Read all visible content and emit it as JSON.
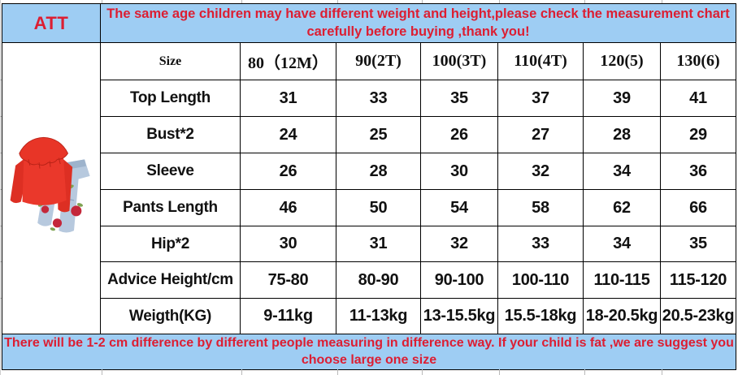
{
  "brand": "ATT",
  "top_banner": "The same age children may have different weight and height,please check the measurement chart carefully before buying ,thank you!",
  "bottom_banner": "There will be 1-2 cm difference by different people measuring in difference way. If your child is fat ,we are suggest you choose large one size",
  "table": {
    "header": [
      "Size",
      "80（12M）",
      "90(2T)",
      "100(3T)",
      "110(4T)",
      "120(5)",
      "130(6)"
    ],
    "rows": [
      {
        "label": "Top Length",
        "values": [
          "31",
          "33",
          "35",
          "37",
          "39",
          "41"
        ]
      },
      {
        "label": "Bust*2",
        "values": [
          "24",
          "25",
          "26",
          "27",
          "28",
          "29"
        ]
      },
      {
        "label": "Sleeve",
        "values": [
          "26",
          "28",
          "30",
          "32",
          "34",
          "36"
        ]
      },
      {
        "label": "Pants Length",
        "values": [
          "46",
          "50",
          "54",
          "58",
          "62",
          "66"
        ]
      },
      {
        "label": "Hip*2",
        "values": [
          "30",
          "31",
          "32",
          "33",
          "34",
          "35"
        ]
      },
      {
        "label": "Advice Height/cm",
        "values": [
          "75-80",
          "80-90",
          "90-100",
          "100-110",
          "110-115",
          "115-120"
        ]
      },
      {
        "label": "Weigth(KG)",
        "values": [
          "9-11kg",
          "11-13kg",
          "13-15.5kg",
          "15.5-18kg",
          "18-20.5kg",
          "20.5-23kg"
        ]
      }
    ]
  },
  "product_photo_alt": "Red off-shoulder ruffle top with rose-embroidered blue jeans",
  "colors": {
    "banner_bg": "#9ecdf3",
    "accent_red": "#dc1e32",
    "table_border": "#000000",
    "top_red": "#ea382b",
    "jeans_blue": "#b7c9de"
  }
}
